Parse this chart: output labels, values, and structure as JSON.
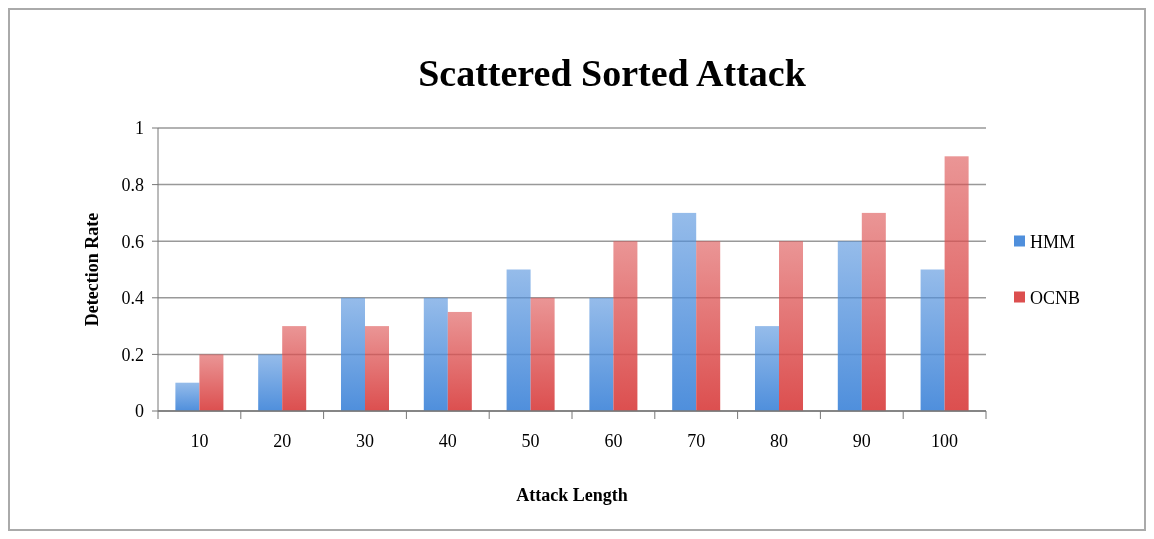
{
  "chart_data": {
    "type": "bar",
    "title": "Scattered Sorted Attack",
    "xlabel": "Attack Length",
    "ylabel": "Detection Rate",
    "categories": [
      "10",
      "20",
      "30",
      "40",
      "50",
      "60",
      "70",
      "80",
      "90",
      "100"
    ],
    "series": [
      {
        "name": "HMM",
        "color": "#4f8fdc",
        "values": [
          0.1,
          0.2,
          0.4,
          0.4,
          0.5,
          0.4,
          0.7,
          0.3,
          0.6,
          0.5
        ]
      },
      {
        "name": "OCNB",
        "color": "#dc4f4f",
        "values": [
          0.2,
          0.3,
          0.3,
          0.35,
          0.4,
          0.6,
          0.6,
          0.6,
          0.7,
          0.9
        ]
      }
    ],
    "ylim": [
      0,
      1
    ],
    "yticks": [
      0,
      {
        "value": 0.2,
        "label": "0.2"
      },
      {
        "value": 0.4,
        "label": "0.4"
      },
      {
        "value": 0.6,
        "label": "0.6"
      },
      {
        "value": 0.8,
        "label": "0.8"
      },
      1
    ],
    "grid": "y",
    "legend": "right"
  }
}
